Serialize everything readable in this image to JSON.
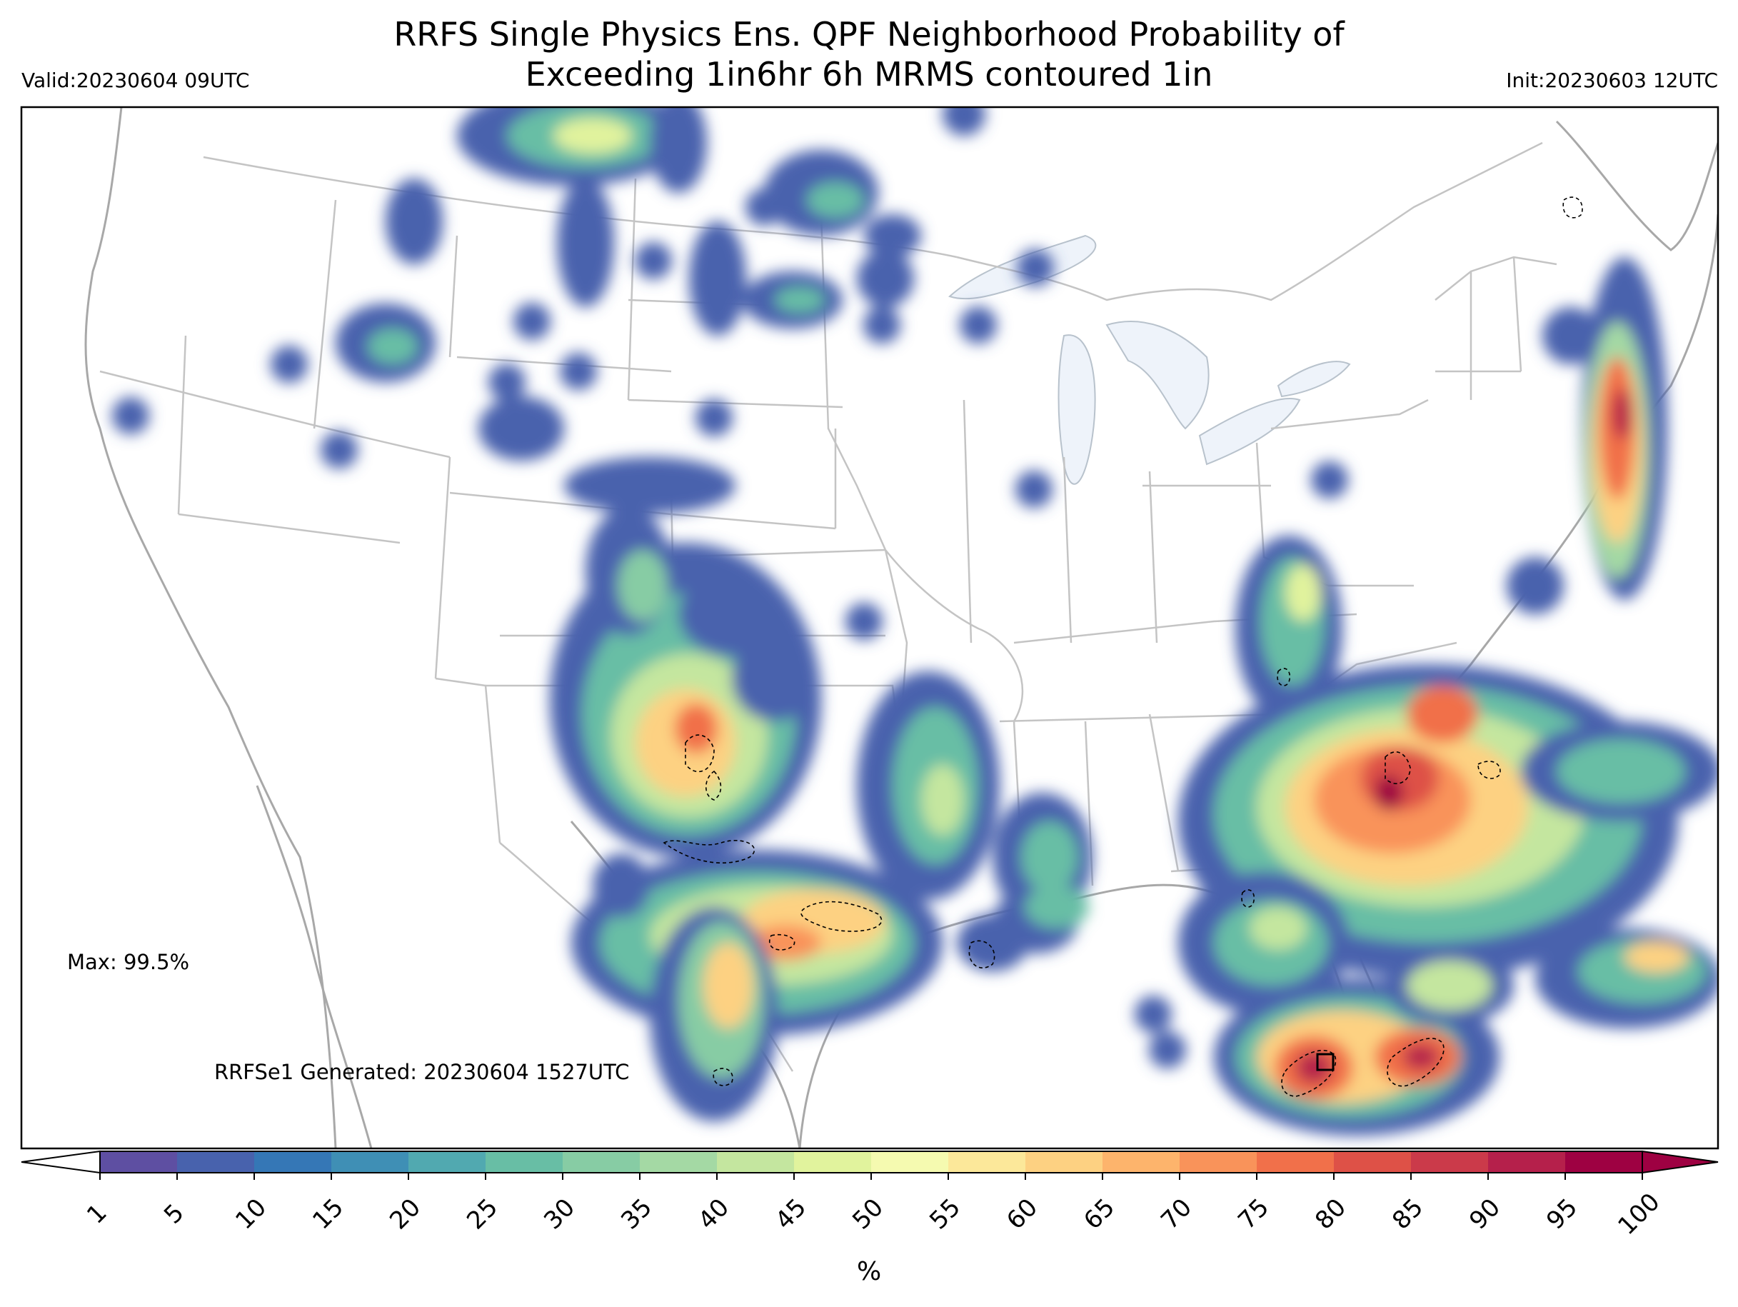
{
  "header": {
    "title_line1": "RRFS Single Physics Ens. QPF Neighborhood Probability of",
    "title_line2": "Exceeding 1in6hr 6h MRMS contoured 1in",
    "valid": "Valid:20230604 09UTC",
    "init": "Init:20230603 12UTC"
  },
  "annotations": {
    "max": "Max: 99.5%",
    "generated": "RRFSe1 Generated: 20230604 1527UTC"
  },
  "colorbar": {
    "levels": [
      "1",
      "5",
      "10",
      "15",
      "20",
      "25",
      "30",
      "35",
      "40",
      "45",
      "50",
      "55",
      "60",
      "65",
      "70",
      "75",
      "80",
      "85",
      "90",
      "95",
      "100"
    ],
    "colors": [
      "#5e4fa2",
      "#4862ad",
      "#3577b6",
      "#3f8fb5",
      "#51a9b0",
      "#68bea5",
      "#87cca4",
      "#a4d9a4",
      "#c4e69f",
      "#e1f39d",
      "#f5fab0",
      "#fce89a",
      "#fdd182",
      "#fdb46c",
      "#f9935a",
      "#f1704a",
      "#de5147",
      "#cb3a4a",
      "#b5204b",
      "#9e0142"
    ],
    "unit": "%"
  },
  "legend_colors": {
    "state_lines": "#c0c0c0",
    "coast_lines": "#a8a8a8",
    "lakes": "#eef3fa",
    "contour": "#000000"
  }
}
